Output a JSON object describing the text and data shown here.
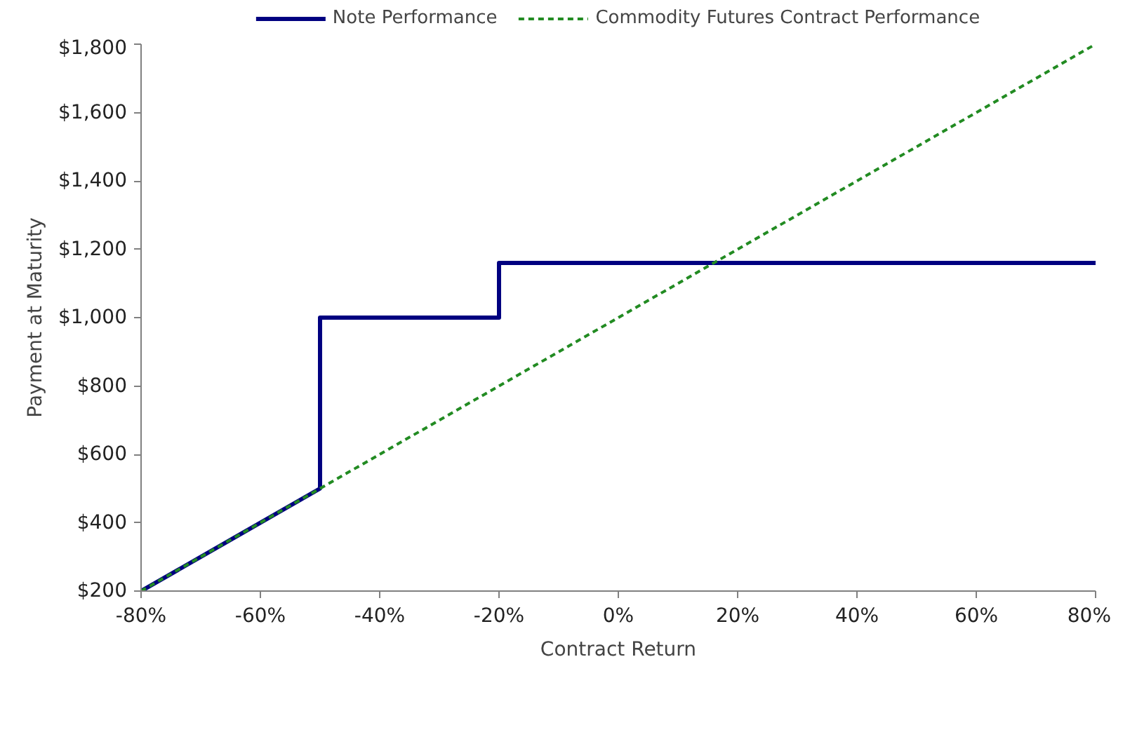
{
  "chart_data": {
    "type": "line",
    "xlabel": "Contract Return",
    "ylabel": "Payment at Maturity",
    "xlim": [
      -80,
      80
    ],
    "ylim": [
      200,
      1800
    ],
    "xticks": [
      {
        "value": -80,
        "label": "-80%"
      },
      {
        "value": -60,
        "label": "-60%"
      },
      {
        "value": -40,
        "label": "-40%"
      },
      {
        "value": -20,
        "label": "-20%"
      },
      {
        "value": 0,
        "label": "0%"
      },
      {
        "value": 20,
        "label": "20%"
      },
      {
        "value": 40,
        "label": "40%"
      },
      {
        "value": 60,
        "label": "60%"
      },
      {
        "value": 80,
        "label": "80%"
      }
    ],
    "yticks": [
      {
        "value": 200,
        "label": "$200"
      },
      {
        "value": 400,
        "label": "$400"
      },
      {
        "value": 600,
        "label": "$600"
      },
      {
        "value": 800,
        "label": "$800"
      },
      {
        "value": 1000,
        "label": "$1,000"
      },
      {
        "value": 1200,
        "label": "$1,200"
      },
      {
        "value": 1400,
        "label": "$1,400"
      },
      {
        "value": 1600,
        "label": "$1,600"
      },
      {
        "value": 1800,
        "label": "$1,800"
      }
    ],
    "grid": false,
    "legend": "top",
    "marker": "none",
    "series": [
      {
        "name": "Note Performance",
        "color": "#000080",
        "line_style": "solid",
        "x": [
          -80,
          -50,
          -50,
          -20,
          -20,
          80
        ],
        "values": [
          200,
          500,
          1000,
          1000,
          1160,
          1160
        ]
      },
      {
        "name": "Commodity Futures Contract Performance",
        "color": "#228b22",
        "line_style": "dashed",
        "x": [
          -80,
          80
        ],
        "values": [
          200,
          1800
        ]
      }
    ]
  }
}
